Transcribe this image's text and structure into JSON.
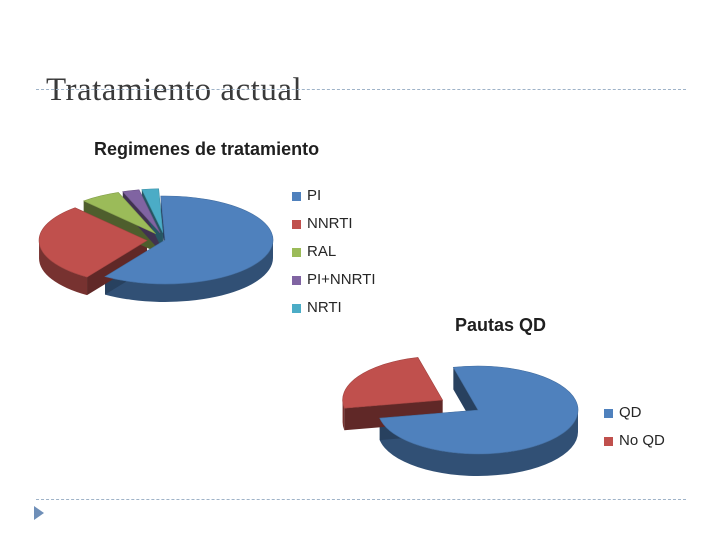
{
  "slide": {
    "title": "Tratamiento actual"
  },
  "chart_data": [
    {
      "type": "pie",
      "title": "Regimenes de tratamiento",
      "legend": "right",
      "slices": [
        {
          "label": "PI",
          "value": 60,
          "color": "#4f81bd",
          "exploded": false
        },
        {
          "label": "NNRTI",
          "value": 29,
          "color": "#c0504d",
          "exploded": true
        },
        {
          "label": "RAL",
          "value": 6,
          "color": "#9bbb59",
          "exploded": true
        },
        {
          "label": "PI+NNRTI",
          "value": 2.5,
          "color": "#8064a2",
          "exploded": true
        },
        {
          "label": "NRTI",
          "value": 2.5,
          "color": "#4bacc6",
          "exploded": true
        }
      ]
    },
    {
      "type": "pie",
      "title": "Pautas QD",
      "legend": "right",
      "slices": [
        {
          "label": "QD",
          "value": 76,
          "color": "#4f81bd",
          "exploded": false
        },
        {
          "label": "No QD",
          "value": 24,
          "color": "#c0504d",
          "exploded": true
        }
      ]
    }
  ]
}
